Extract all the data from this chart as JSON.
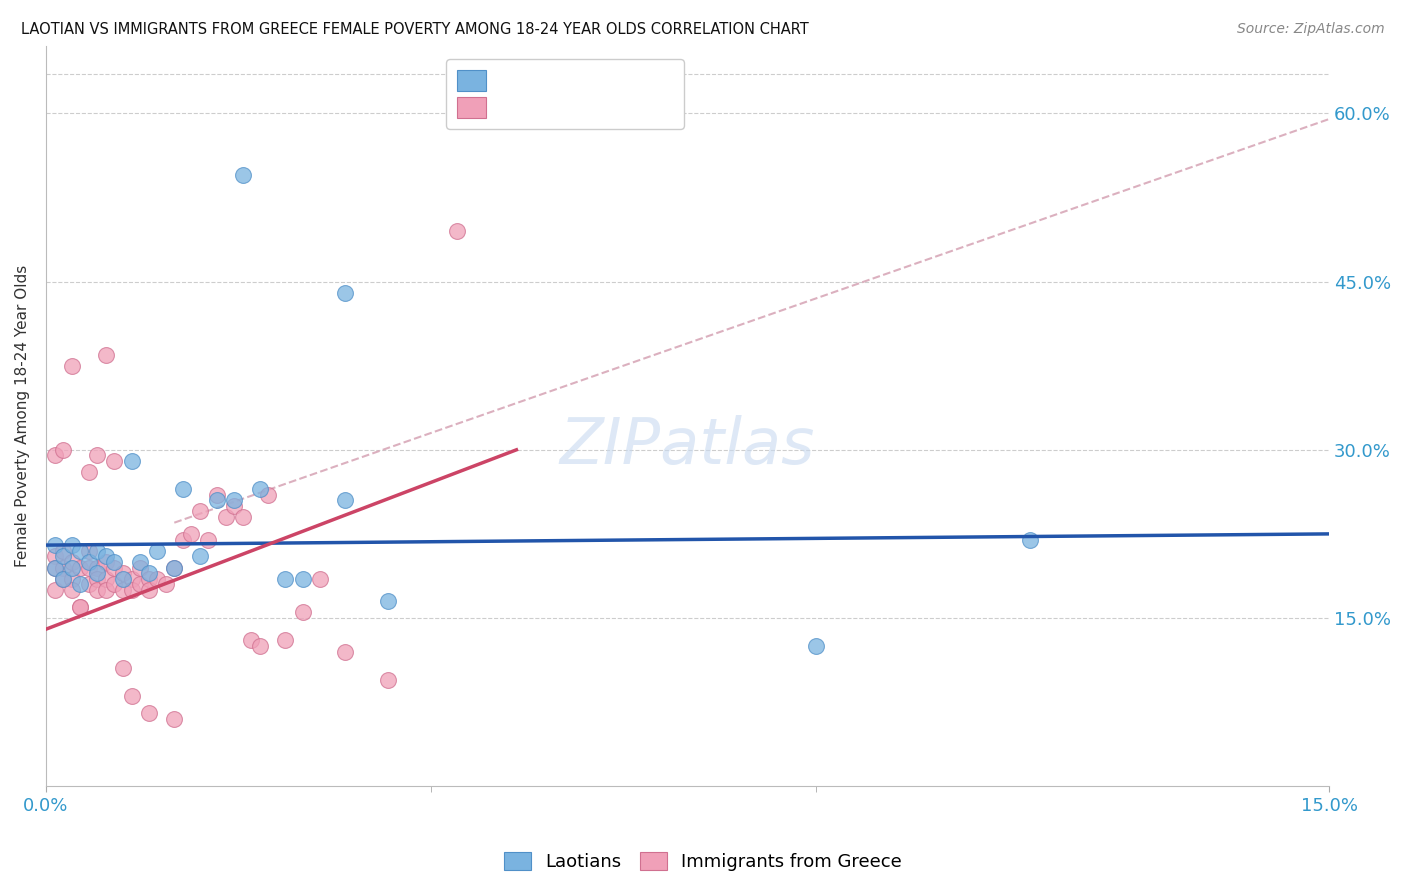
{
  "title": "LAOTIAN VS IMMIGRANTS FROM GREECE FEMALE POVERTY AMONG 18-24 YEAR OLDS CORRELATION CHART",
  "source": "Source: ZipAtlas.com",
  "ylabel": "Female Poverty Among 18-24 Year Olds",
  "xlim": [
    0.0,
    0.15
  ],
  "ylim": [
    0.0,
    0.66
  ],
  "yticks": [
    0.15,
    0.3,
    0.45,
    0.6
  ],
  "yticklabels": [
    "15.0%",
    "30.0%",
    "45.0%",
    "60.0%"
  ],
  "grid_color": "#c8c8c8",
  "background_color": "#ffffff",
  "series1_color": "#7ab3e0",
  "series1_edge": "#5090c8",
  "series2_color": "#f0a0b8",
  "series2_edge": "#d07090",
  "line1_color": "#2255aa",
  "line2_color": "#cc4466",
  "dashed_line_color": "#d8a8b8",
  "watermark_color": "#c8daf0",
  "laotians_x": [
    0.001,
    0.001,
    0.002,
    0.002,
    0.003,
    0.003,
    0.004,
    0.004,
    0.005,
    0.006,
    0.006,
    0.007,
    0.008,
    0.009,
    0.01,
    0.011,
    0.012,
    0.013,
    0.015,
    0.016,
    0.018,
    0.02,
    0.022,
    0.025,
    0.028,
    0.03,
    0.035,
    0.04,
    0.09,
    0.115,
    0.023,
    0.035
  ],
  "laotians_y": [
    0.215,
    0.195,
    0.205,
    0.185,
    0.215,
    0.195,
    0.21,
    0.18,
    0.2,
    0.21,
    0.19,
    0.205,
    0.2,
    0.185,
    0.29,
    0.2,
    0.19,
    0.21,
    0.195,
    0.265,
    0.205,
    0.255,
    0.255,
    0.265,
    0.185,
    0.185,
    0.255,
    0.165,
    0.125,
    0.22,
    0.545,
    0.44
  ],
  "greece_x": [
    0.001,
    0.001,
    0.001,
    0.002,
    0.002,
    0.002,
    0.003,
    0.003,
    0.003,
    0.004,
    0.004,
    0.005,
    0.005,
    0.005,
    0.006,
    0.006,
    0.006,
    0.007,
    0.007,
    0.007,
    0.008,
    0.008,
    0.009,
    0.009,
    0.01,
    0.01,
    0.011,
    0.011,
    0.012,
    0.012,
    0.013,
    0.014,
    0.015,
    0.016,
    0.017,
    0.018,
    0.019,
    0.02,
    0.021,
    0.022,
    0.023,
    0.024,
    0.025,
    0.026,
    0.028,
    0.03,
    0.032,
    0.035,
    0.04,
    0.048,
    0.001,
    0.002,
    0.003,
    0.004,
    0.005,
    0.006,
    0.007,
    0.008,
    0.009,
    0.01,
    0.012,
    0.015
  ],
  "greece_y": [
    0.205,
    0.195,
    0.175,
    0.21,
    0.195,
    0.185,
    0.2,
    0.185,
    0.175,
    0.195,
    0.16,
    0.21,
    0.195,
    0.18,
    0.195,
    0.185,
    0.175,
    0.2,
    0.185,
    0.175,
    0.195,
    0.18,
    0.19,
    0.175,
    0.185,
    0.175,
    0.195,
    0.18,
    0.185,
    0.175,
    0.185,
    0.18,
    0.195,
    0.22,
    0.225,
    0.245,
    0.22,
    0.26,
    0.24,
    0.25,
    0.24,
    0.13,
    0.125,
    0.26,
    0.13,
    0.155,
    0.185,
    0.12,
    0.095,
    0.495,
    0.295,
    0.3,
    0.375,
    0.16,
    0.28,
    0.295,
    0.385,
    0.29,
    0.105,
    0.08,
    0.065,
    0.06
  ],
  "blue_line_x": [
    0.0,
    0.15
  ],
  "blue_line_y": [
    0.215,
    0.225
  ],
  "pink_line_x": [
    0.0,
    0.055
  ],
  "pink_line_y": [
    0.14,
    0.3
  ],
  "dash_line_x": [
    0.015,
    0.15
  ],
  "dash_line_y": [
    0.235,
    0.595
  ]
}
